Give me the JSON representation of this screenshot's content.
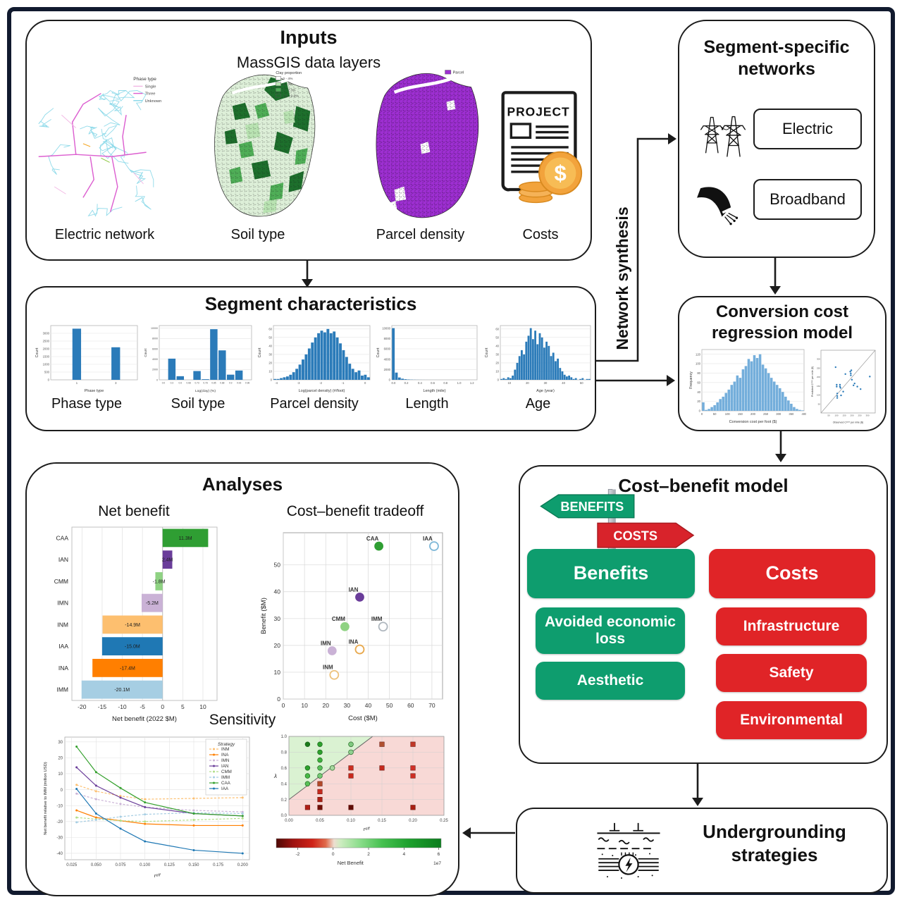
{
  "labels": {
    "network_synthesis": "Network synthesis"
  },
  "inputs": {
    "title": "Inputs",
    "subtitle": "MassGIS data layers",
    "electric": {
      "caption": "Electric network",
      "legend_title": "Phase type",
      "legend": [
        "Single",
        "Three",
        "Unknown"
      ]
    },
    "soil": {
      "caption": "Soil type",
      "legend_title": "Clay proportion",
      "legend": [
        "0 - 4%",
        "4 - 7%",
        "7 - 7.3%",
        "7.3 - 9.3%"
      ]
    },
    "parcel": {
      "caption": "Parcel density",
      "legend": [
        "Parcel"
      ]
    },
    "costs": {
      "caption": "Costs",
      "doc_text": "PROJECT",
      "coin_symbol": "$"
    }
  },
  "segment_networks": {
    "title": "Segment-specific networks",
    "electric_label": "Electric",
    "broadband_label": "Broadband"
  },
  "segment_characteristics": {
    "title": "Segment characteristics",
    "captions": [
      "Phase type",
      "Soil type",
      "Parcel density",
      "Length",
      "Age"
    ]
  },
  "conversion_cost": {
    "title": "Conversion cost regression model"
  },
  "analyses": {
    "title": "Analyses",
    "net_benefit_title": "Net benefit",
    "tradeoff_title": "Cost–benefit tradeoff",
    "sensitivity_title": "Sensitivity"
  },
  "cost_benefit": {
    "title": "Cost–benefit model",
    "sign_benefits": "BENEFITS",
    "sign_costs": "COSTS",
    "benefit_items": [
      "Benefits",
      "Avoided economic loss",
      "Aesthetic"
    ],
    "cost_items": [
      "Costs",
      "Infrastructure",
      "Safety",
      "Environmental"
    ],
    "green": "#0e9d6e",
    "red": "#e02427"
  },
  "undergrounding": {
    "title": "Undergrounding strategies"
  },
  "chart_data": {
    "phase_hist": {
      "type": "hist",
      "xlabel": "Phase type",
      "ylabel": "Count",
      "ymax": 3500,
      "yticks": [
        0,
        500,
        1000,
        1500,
        2000,
        2500,
        3000
      ],
      "color": "#2b7bb9",
      "tfs": 4.2,
      "barw": 0.1,
      "bars": [
        {
          "f": 0.3,
          "v": 3300
        },
        {
          "f": 0.75,
          "v": 2100
        }
      ],
      "xticks": [
        {
          "f": 0.3,
          "label": "1"
        },
        {
          "f": 0.75,
          "label": "3"
        }
      ]
    },
    "soil_hist": {
      "type": "hist",
      "xlabel": "Log(clay) (%)",
      "ylabel": "Count",
      "ymax": 10500,
      "yticks": [
        0,
        2000,
        4000,
        6000,
        8000,
        10000
      ],
      "color": "#2b7bb9",
      "tfs": 3.6,
      "values": [
        0,
        4100,
        700,
        0,
        1700,
        120,
        9800,
        5700,
        1000,
        1800,
        0
      ],
      "xtick_labels": [
        "0.0",
        "0.3",
        "0.6",
        "0.68",
        "0.73",
        "0.78",
        "0.85",
        "0.88",
        "0.9",
        "0.93",
        "0.98"
      ]
    },
    "parcel_hist": {
      "type": "hist",
      "xlabel": "Log(parcel density) (#/foot)",
      "ylabel": "Count",
      "ymax": 64,
      "yticks": [
        0,
        10,
        20,
        30,
        40,
        50,
        60
      ],
      "color": "#2b7bb9",
      "tfs": 4.2,
      "values": [
        1,
        1,
        2,
        3,
        4,
        6,
        9,
        13,
        18,
        24,
        30,
        37,
        44,
        50,
        55,
        58,
        56,
        60,
        55,
        57,
        50,
        43,
        35,
        27,
        19,
        13,
        9,
        11,
        5,
        6,
        3
      ],
      "xticks": [
        {
          "f": 0.03,
          "label": "-4"
        },
        {
          "f": 0.26,
          "label": "-3"
        },
        {
          "f": 0.49,
          "label": "-2"
        },
        {
          "f": 0.72,
          "label": "-1"
        },
        {
          "f": 0.95,
          "label": "0"
        }
      ]
    },
    "length_hist": {
      "type": "hist",
      "xlabel": "Length (mile)",
      "ylabel": "Count",
      "ymax": 10500,
      "yticks": [
        0,
        2000,
        4000,
        6000,
        8000,
        10000
      ],
      "color": "#2b7bb9",
      "tfs": 4.2,
      "values": [
        10000,
        1400,
        450,
        220,
        120,
        70,
        40,
        25,
        15,
        10,
        6,
        4,
        3,
        2,
        2,
        1,
        1,
        1,
        0,
        1,
        0,
        0,
        1,
        0,
        0,
        0,
        1,
        0
      ],
      "xticks": [
        {
          "f": 0.02,
          "label": "0.0"
        },
        {
          "f": 0.17,
          "label": "0.2"
        },
        {
          "f": 0.33,
          "label": "0.4"
        },
        {
          "f": 0.48,
          "label": "0.6"
        },
        {
          "f": 0.63,
          "label": "0.8"
        },
        {
          "f": 0.79,
          "label": "1.0"
        },
        {
          "f": 0.94,
          "label": "1.2"
        }
      ]
    },
    "age_hist": {
      "type": "hist",
      "xlabel": "Age (year)",
      "ylabel": "Count",
      "ymax": 64,
      "yticks": [
        0,
        10,
        20,
        30,
        40,
        50,
        60
      ],
      "color": "#2b7bb9",
      "tfs": 4.2,
      "values": [
        1,
        2,
        1,
        3,
        2,
        5,
        12,
        20,
        28,
        35,
        30,
        45,
        52,
        61,
        48,
        58,
        42,
        55,
        50,
        38,
        45,
        40,
        28,
        32,
        22,
        25,
        14,
        10,
        6,
        4,
        5,
        3,
        1,
        2,
        0,
        1,
        2,
        0,
        1,
        1
      ],
      "xticks": [
        {
          "f": 0.1,
          "label": "10"
        },
        {
          "f": 0.3,
          "label": "20"
        },
        {
          "f": 0.5,
          "label": "30"
        },
        {
          "f": 0.7,
          "label": "40"
        },
        {
          "f": 0.9,
          "label": "50"
        }
      ]
    },
    "conv_hist": {
      "type": "hist",
      "xlabel": "Conversion cost per foot ($)",
      "ylabel": "Frequency",
      "ymax": 130,
      "yticks": [
        0,
        20,
        40,
        60,
        80,
        100,
        120
      ],
      "color": "#74aedb",
      "tfs": 4.2,
      "ml": 20,
      "values": [
        18,
        2,
        4,
        8,
        12,
        18,
        25,
        30,
        38,
        45,
        55,
        62,
        75,
        70,
        88,
        95,
        110,
        105,
        118,
        112,
        120,
        98,
        90,
        80,
        70,
        62,
        55,
        48,
        40,
        30,
        22,
        15,
        8,
        4,
        2,
        1
      ],
      "xticks": [
        {
          "f": 0,
          "label": "0"
        },
        {
          "f": 0.125,
          "label": "50"
        },
        {
          "f": 0.25,
          "label": "100"
        },
        {
          "f": 0.375,
          "label": "150"
        },
        {
          "f": 0.5,
          "label": "200"
        },
        {
          "f": 0.625,
          "label": "250"
        },
        {
          "f": 0.75,
          "label": "300"
        },
        {
          "f": 0.875,
          "label": "350"
        },
        {
          "f": 1,
          "label": "400"
        }
      ]
    },
    "conv_scatter": {
      "type": "scatter",
      "xlabel": "Observed Cᶜᵒⁿᵛ per mile ($)",
      "ylabel": "Predicted Cᶜᵒⁿᵛ per mile ($)",
      "xticks": [
        "50",
        "100",
        "150",
        "200",
        "250",
        "300"
      ],
      "yticks": [
        "50",
        "100",
        "150",
        "200",
        "250",
        "300"
      ],
      "points": [
        [
          0.27,
          0.73
        ],
        [
          0.29,
          0.45
        ],
        [
          0.29,
          0.42
        ],
        [
          0.3,
          0.31
        ],
        [
          0.3,
          0.27
        ],
        [
          0.35,
          0.45
        ],
        [
          0.35,
          0.42
        ],
        [
          0.36,
          0.4
        ],
        [
          0.37,
          0.28
        ],
        [
          0.41,
          0.34
        ],
        [
          0.45,
          0.62
        ],
        [
          0.54,
          0.66
        ],
        [
          0.55,
          0.63
        ],
        [
          0.55,
          0.6
        ],
        [
          0.57,
          0.53
        ],
        [
          0.6,
          0.44
        ],
        [
          0.62,
          0.47
        ],
        [
          0.67,
          0.42
        ],
        [
          0.73,
          0.38
        ],
        [
          0.9,
          0.58
        ],
        [
          0.3,
          0.24
        ],
        [
          0.56,
          0.68
        ]
      ]
    },
    "net_benefit": {
      "type": "barh",
      "xlabel": "Net benefit (2022 $M)",
      "xmin": -22.5,
      "xmax": 13.5,
      "xticks": [
        -20,
        -15,
        -10,
        -5,
        0,
        5,
        10
      ],
      "bars": [
        {
          "label": "CAA",
          "value": 11.3,
          "text": "11.3M",
          "color": "#2f9e33"
        },
        {
          "label": "IAN",
          "value": 2.4,
          "text": "2.4M",
          "color": "#6a3d9a"
        },
        {
          "label": "CMM",
          "value": -1.8,
          "text": "-1.8M",
          "color": "#8fd283"
        },
        {
          "label": "IMN",
          "value": -5.2,
          "text": "-5.2M",
          "color": "#cab2d6"
        },
        {
          "label": "INM",
          "value": -14.9,
          "text": "-14.9M",
          "color": "#fdbf6f"
        },
        {
          "label": "IAA",
          "value": -15.0,
          "text": "-15.0M",
          "color": "#1f78b4"
        },
        {
          "label": "INA",
          "value": -17.4,
          "text": "-17.4M",
          "color": "#ff7f00"
        },
        {
          "label": "IMM",
          "value": -20.1,
          "text": "-20.1M",
          "color": "#a6cee3"
        }
      ]
    },
    "tradeoff": {
      "type": "labeled_scatter",
      "xlabel": "Cost ($M)",
      "ylabel": "Benefit ($M)",
      "xmax": 75,
      "ymax": 62,
      "xticks": [
        0,
        10,
        20,
        30,
        40,
        50,
        60,
        70
      ],
      "yticks": [
        0,
        10,
        20,
        30,
        40,
        50
      ],
      "points": [
        {
          "label": "CAA",
          "x": 45,
          "y": 57,
          "color": "#2f9e33",
          "filled": true
        },
        {
          "label": "IAA",
          "x": 71,
          "y": 57,
          "color": "#7fb8d8",
          "filled": false
        },
        {
          "label": "IAN",
          "x": 36,
          "y": 38,
          "color": "#6a3d9a",
          "filled": true
        },
        {
          "label": "CMM",
          "x": 29,
          "y": 27,
          "color": "#8fd283",
          "filled": true
        },
        {
          "label": "IMM",
          "x": 47,
          "y": 27,
          "color": "#b0b8bf",
          "filled": false
        },
        {
          "label": "IMN",
          "x": 23,
          "y": 18,
          "color": "#cab2d6",
          "filled": true
        },
        {
          "label": "INA",
          "x": 36,
          "y": 18.5,
          "color": "#e8a94e",
          "filled": false
        },
        {
          "label": "INM",
          "x": 24,
          "y": 9,
          "color": "#edc27c",
          "filled": false
        }
      ]
    },
    "sensitivity": {
      "type": "lines",
      "xlabel": "rᵉᶠᶠ",
      "ylabel": "Net benefit relative to IMM (million USD)",
      "legend_title": "Strategy",
      "x": [
        0.03,
        0.05,
        0.075,
        0.1,
        0.15,
        0.2
      ],
      "xticks": [
        "0.025",
        "0.050",
        "0.075",
        "0.100",
        "0.125",
        "0.150",
        "0.175",
        "0.200"
      ],
      "yticks": [
        -40,
        -30,
        -20,
        -10,
        0,
        10,
        20,
        30
      ],
      "ymin": -44,
      "ymax": 33,
      "series": [
        {
          "name": "INM",
          "color": "#fdbf6f",
          "dashed": true,
          "values": [
            3,
            -1,
            -4,
            -6,
            -5.5,
            -5
          ]
        },
        {
          "name": "INA",
          "color": "#ff7f00",
          "dashed": false,
          "values": [
            -13,
            -17.5,
            -19.5,
            -21.5,
            -22.5,
            -22.5
          ]
        },
        {
          "name": "IMN",
          "color": "#cab2d6",
          "dashed": true,
          "values": [
            -2.5,
            -6,
            -9,
            -11,
            -13,
            -14
          ]
        },
        {
          "name": "IAN",
          "color": "#6a3d9a",
          "dashed": false,
          "values": [
            14,
            2.5,
            -5,
            -11,
            -15,
            -16.5
          ]
        },
        {
          "name": "CMM",
          "color": "#b2df8a",
          "dashed": true,
          "values": [
            -17.5,
            -18.5,
            -19.5,
            -20,
            -19,
            -18
          ]
        },
        {
          "name": "IMM",
          "color": "#a6cee3",
          "dashed": true,
          "values": [
            -20.5,
            -19,
            -17,
            -15.5,
            -14.5,
            -15
          ]
        },
        {
          "name": "CAA",
          "color": "#33a02c",
          "dashed": false,
          "values": [
            27,
            11,
            1,
            -8,
            -15,
            -16.5
          ]
        },
        {
          "name": "IAA",
          "color": "#1f78b4",
          "dashed": false,
          "values": [
            0.5,
            -15,
            -24.5,
            -32.5,
            -38,
            -40
          ]
        }
      ]
    },
    "lambda_region": {
      "type": "region",
      "xlabel": "rᵉᶠᶠ",
      "ylabel": "λ",
      "xticks": [
        "0.00",
        "0.05",
        "0.10",
        "0.15",
        "0.20",
        "0.25"
      ],
      "yticks": [
        "0.0",
        "0.2",
        "0.4",
        "0.6",
        "0.8",
        "1.0"
      ],
      "line": {
        "x1": 0,
        "y1": 0.2,
        "x2": 0.135,
        "y2": 1.0
      },
      "green_points": [
        [
          0.03,
          0.9,
          "#1a7a1a"
        ],
        [
          0.05,
          0.9,
          "#2da02d"
        ],
        [
          0.1,
          0.9,
          "#7fc97f"
        ],
        [
          0.05,
          0.8,
          "#2da02d"
        ],
        [
          0.1,
          0.8,
          "#90d090"
        ],
        [
          0.05,
          0.7,
          "#3cb03c"
        ],
        [
          0.03,
          0.6,
          "#2da02d"
        ],
        [
          0.05,
          0.6,
          "#5abf5a"
        ],
        [
          0.07,
          0.6,
          "#a8d6a0"
        ],
        [
          0.03,
          0.5,
          "#46b846"
        ],
        [
          0.05,
          0.5,
          "#74c874"
        ],
        [
          0.03,
          0.4,
          "#58c058"
        ]
      ],
      "red_points": [
        [
          0.15,
          0.9,
          "#b05030"
        ],
        [
          0.2,
          0.9,
          "#c03828"
        ],
        [
          0.1,
          0.6,
          "#cc2e20"
        ],
        [
          0.15,
          0.6,
          "#c42a1e"
        ],
        [
          0.2,
          0.6,
          "#d03028"
        ],
        [
          0.1,
          0.5,
          "#c8281c"
        ],
        [
          0.2,
          0.5,
          "#cc2e24"
        ],
        [
          0.05,
          0.4,
          "#b24a2a"
        ],
        [
          0.05,
          0.3,
          "#c42a1e"
        ],
        [
          0.05,
          0.2,
          "#aa1f14"
        ],
        [
          0.03,
          0.1,
          "#b02018"
        ],
        [
          0.05,
          0.1,
          "#701008"
        ],
        [
          0.1,
          0.1,
          "#600c06"
        ],
        [
          0.2,
          0.1,
          "#a81e12"
        ]
      ]
    },
    "net_benefit_cbar": {
      "type": "colorbar",
      "label": "Net Benefit",
      "exp": "1e7",
      "ticks": [
        {
          "f": 0.13,
          "label": "-2"
        },
        {
          "f": 0.345,
          "label": "0"
        },
        {
          "f": 0.56,
          "label": "2"
        },
        {
          "f": 0.775,
          "label": "4"
        },
        {
          "f": 0.985,
          "label": "6"
        }
      ],
      "stops": [
        [
          0,
          "#4d0905"
        ],
        [
          0.1,
          "#9c1210"
        ],
        [
          0.22,
          "#cf2318"
        ],
        [
          0.3,
          "#e06a4b"
        ],
        [
          0.35,
          "#eeddd0"
        ],
        [
          0.39,
          "#cdecc0"
        ],
        [
          0.5,
          "#8ede8e"
        ],
        [
          0.64,
          "#47c151"
        ],
        [
          0.8,
          "#1ea12e"
        ],
        [
          1,
          "#0b7c1d"
        ]
      ]
    }
  }
}
